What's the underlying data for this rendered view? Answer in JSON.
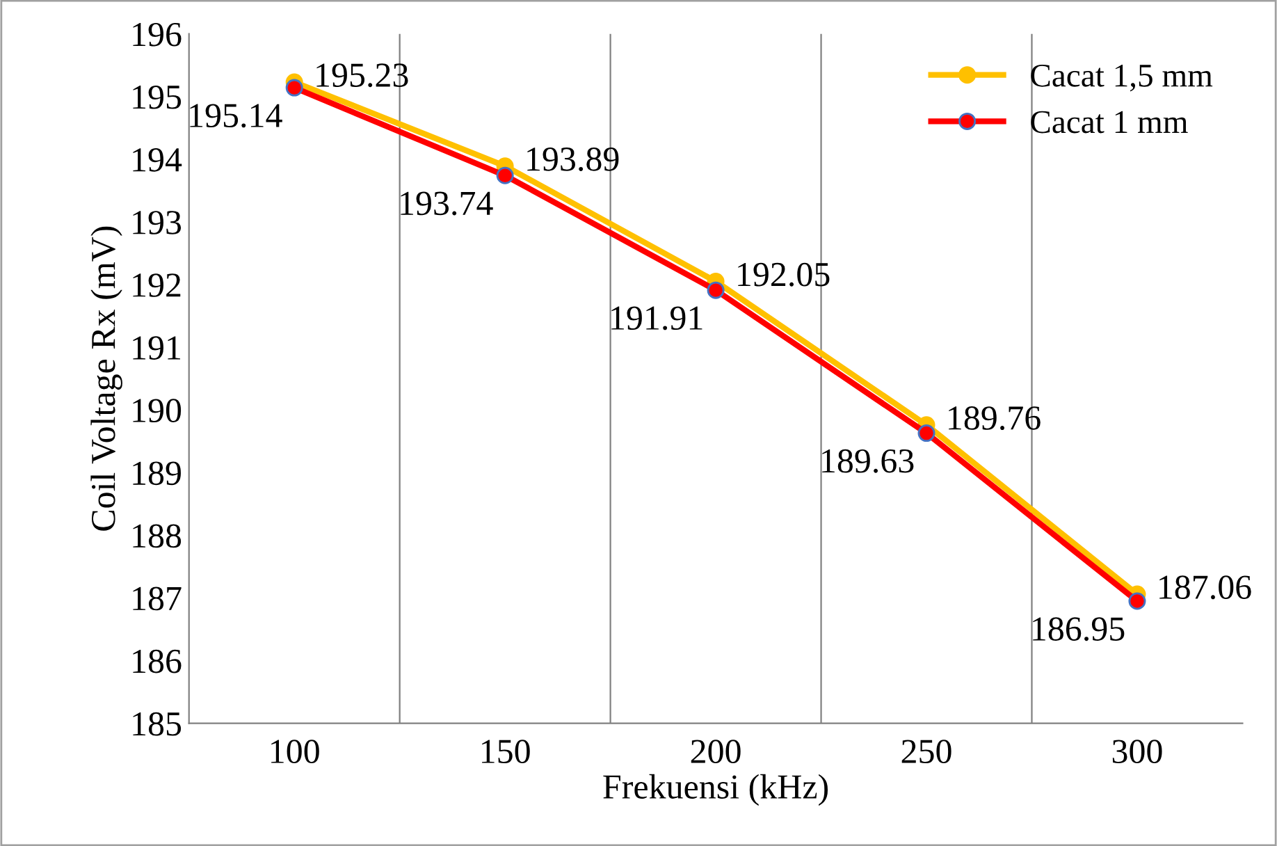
{
  "chart_data": {
    "type": "line",
    "xlabel": "Frekuensi (kHz)",
    "ylabel": "Coil Voltage Rx (mV)",
    "categories": [
      "100",
      "150",
      "200",
      "250",
      "300"
    ],
    "series": [
      {
        "name": "Cacat 1,5 mm",
        "color": "#ffc000",
        "values": [
          195.23,
          193.89,
          192.05,
          189.76,
          187.06
        ]
      },
      {
        "name": "Cacat 1 mm",
        "color": "#ff0000",
        "values": [
          195.14,
          193.74,
          191.91,
          189.63,
          186.95
        ]
      }
    ],
    "ylim": [
      185,
      196
    ],
    "yticks": [
      185,
      186,
      187,
      188,
      189,
      190,
      191,
      192,
      193,
      194,
      195,
      196
    ],
    "grid": "x",
    "legend": "top right",
    "marker": "circle",
    "line_style": "solid",
    "data_labels": true
  }
}
